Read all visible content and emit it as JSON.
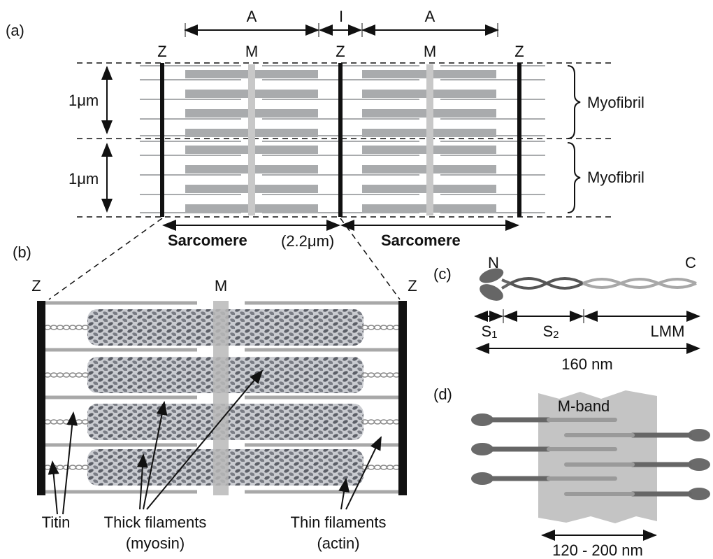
{
  "panel_a": {
    "label": "(a)",
    "bands": [
      "A",
      "I",
      "A"
    ],
    "lines": [
      "Z",
      "M",
      "Z",
      "M",
      "Z"
    ],
    "scale": [
      "1μm",
      "1μm"
    ],
    "myofibril": [
      "Myofibril",
      "Myofibril"
    ],
    "sarcomere": "Sarcomere",
    "sarcomere_length": "(2.2μm)",
    "sarcomere2": "Sarcomere"
  },
  "panel_b": {
    "label": "(b)",
    "lines": [
      "Z",
      "M",
      "Z"
    ],
    "titin": "Titin",
    "thick": "Thick filaments",
    "thick_sub": "(myosin)",
    "thin": "Thin filaments",
    "thin_sub": "(actin)"
  },
  "panel_c": {
    "label": "(c)",
    "n": "N",
    "c": "C",
    "s1": {
      "letter": "S",
      "sub": "1"
    },
    "s2": {
      "letter": "S",
      "sub": "2"
    },
    "lmm": "LMM",
    "length": "160 nm"
  },
  "panel_d": {
    "label": "(d)",
    "band": "M-band",
    "length": "120 - 200 nm"
  }
}
